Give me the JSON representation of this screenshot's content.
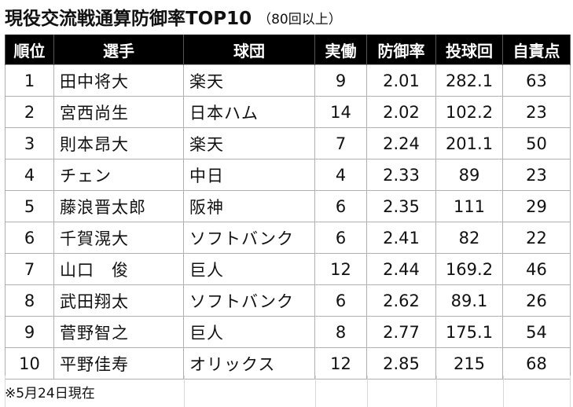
{
  "title": "現役交流戦通算防御率TOP10",
  "subtitle": "（80回以上）",
  "headers": [
    "順位",
    "選手",
    "球団",
    "実働",
    "防御率",
    "投球回",
    "自責点"
  ],
  "rows": [
    [
      "1",
      "田中将大",
      "楽天",
      "9",
      "2.01",
      "282.1",
      "63"
    ],
    [
      "2",
      "宮西尚生",
      "日本ハム",
      "14",
      "2.02",
      "102.2",
      "23"
    ],
    [
      "3",
      "則本昂大",
      "楽天",
      "7",
      "2.24",
      "201.1",
      "50"
    ],
    [
      "4",
      "チェン",
      "中日",
      "4",
      "2.33",
      "89",
      "23"
    ],
    [
      "5",
      "藤浪晋太郎",
      "阪神",
      "6",
      "2.35",
      "111",
      "29"
    ],
    [
      "6",
      "千賀滉大",
      "ソフトバンク",
      "6",
      "2.41",
      "82",
      "22"
    ],
    [
      "7",
      "山口　俊",
      "巨人",
      "12",
      "2.44",
      "169.2",
      "46"
    ],
    [
      "8",
      "武田翔太",
      "ソフトバンク",
      "6",
      "2.62",
      "89.1",
      "26"
    ],
    [
      "9",
      "菅野智之",
      "巨人",
      "8",
      "2.77",
      "175.1",
      "54"
    ],
    [
      "10",
      "平野佳寿",
      "オリックス",
      "12",
      "2.85",
      "215",
      "68"
    ]
  ],
  "note": "※5月24日現在"
}
